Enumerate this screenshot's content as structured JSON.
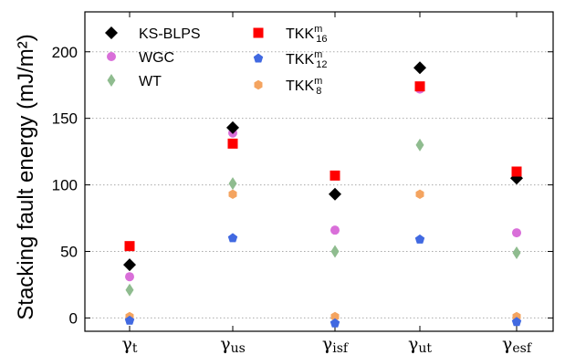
{
  "chart_data": {
    "type": "scatter",
    "ylabel": "Stacking fault energy (mJ/m²)",
    "ylim": [
      -10,
      230
    ],
    "yticks": [
      0,
      50,
      100,
      150,
      200
    ],
    "grid": "horizontal dotted",
    "legend_position": "top-left",
    "categories": [
      {
        "base": "γ",
        "sub": "t"
      },
      {
        "base": "γ",
        "sub": "us"
      },
      {
        "base": "γ",
        "sub": "isf"
      },
      {
        "base": "γ",
        "sub": "ut"
      },
      {
        "base": "γ",
        "sub": "esf"
      }
    ],
    "series": [
      {
        "name": "KS-BLPS",
        "marker": "diamond",
        "color": "#000000",
        "values": [
          40,
          143,
          93,
          188,
          105
        ]
      },
      {
        "name": "WGC",
        "marker": "circle",
        "color": "#d96fd9",
        "values": [
          31,
          139,
          66,
          172,
          64
        ]
      },
      {
        "name": "WT",
        "marker": "thin-diamond",
        "color": "#8fbc8f",
        "values": [
          21,
          101,
          50,
          130,
          49
        ]
      },
      {
        "name": "TKK",
        "name_sup": "m",
        "name_sub": "16",
        "marker": "square",
        "color": "#ff0000",
        "values": [
          54,
          131,
          107,
          174,
          110
        ]
      },
      {
        "name": "TKK",
        "name_sup": "m",
        "name_sub": "12",
        "marker": "pentagon",
        "color": "#4169e1",
        "values": [
          -2,
          60,
          -4,
          59,
          -3
        ]
      },
      {
        "name": "TKK",
        "name_sup": "m",
        "name_sub": "8",
        "marker": "hexagon",
        "color": "#f4a460",
        "values": [
          1,
          93,
          1,
          93,
          1
        ]
      }
    ]
  }
}
